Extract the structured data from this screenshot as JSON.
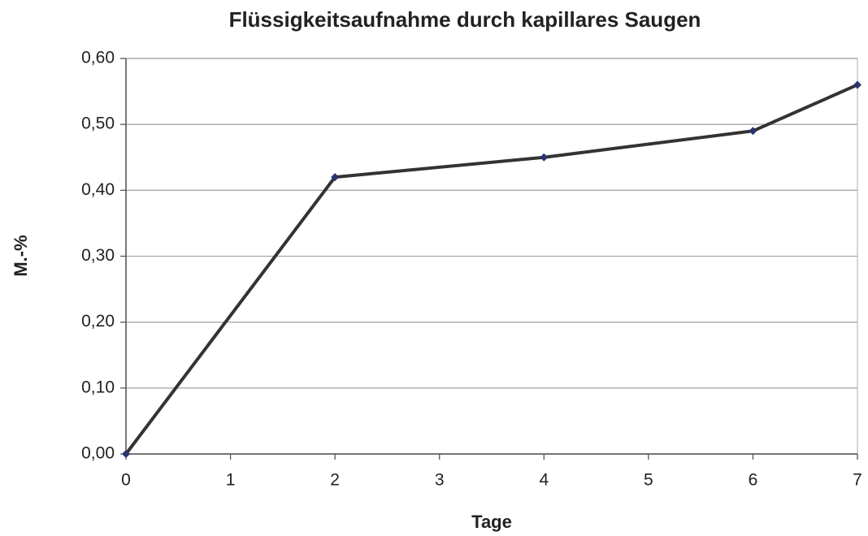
{
  "chart_data": {
    "type": "line",
    "title": "Flüssigkeitsaufnahme durch kapillares Saugen",
    "x_label": "Tage",
    "y_label": "M.-%",
    "x": [
      0,
      2,
      4,
      6,
      7
    ],
    "series": [
      {
        "name": "M.-%",
        "color": "#333333",
        "marker_color": "#2a3570",
        "values": [
          0,
          0.42,
          0.45,
          0.49,
          0.56
        ]
      }
    ],
    "xlim": [
      0,
      7
    ],
    "xticks": [
      0,
      1,
      2,
      3,
      4,
      5,
      6,
      7
    ],
    "ylim": [
      0,
      0.6
    ],
    "yticks": [
      {
        "value": 0,
        "label": "0,00"
      },
      {
        "value": 0.1,
        "label": "0,10"
      },
      {
        "value": 0.2,
        "label": "0,20"
      },
      {
        "value": 0.3,
        "label": "0,30"
      },
      {
        "value": 0.4,
        "label": "0,40"
      },
      {
        "value": 0.5,
        "label": "0,50"
      },
      {
        "value": 0.6,
        "label": "0,60"
      }
    ],
    "grid": true
  }
}
